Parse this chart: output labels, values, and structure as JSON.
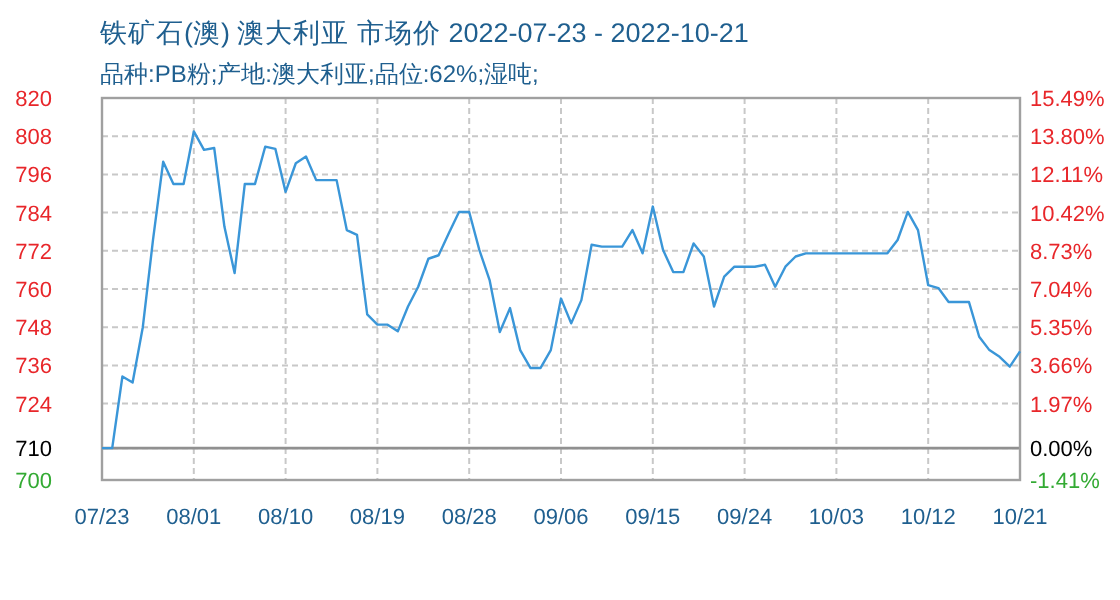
{
  "chart_data": {
    "type": "line",
    "title": "铁矿石(澳) 澳大利亚 市场价 2022-07-23 - 2022-10-21",
    "subtitle": "品种:PB粉;产地:澳大利亚;品位:62%;湿吨;",
    "x": [
      "2022-07-23",
      "2022-07-24",
      "2022-07-25",
      "2022-07-26",
      "2022-07-27",
      "2022-07-28",
      "2022-07-29",
      "2022-07-30",
      "2022-07-31",
      "2022-08-01",
      "2022-08-02",
      "2022-08-03",
      "2022-08-04",
      "2022-08-05",
      "2022-08-06",
      "2022-08-07",
      "2022-08-08",
      "2022-08-09",
      "2022-08-10",
      "2022-08-11",
      "2022-08-12",
      "2022-08-13",
      "2022-08-14",
      "2022-08-15",
      "2022-08-16",
      "2022-08-17",
      "2022-08-18",
      "2022-08-19",
      "2022-08-20",
      "2022-08-21",
      "2022-08-22",
      "2022-08-23",
      "2022-08-24",
      "2022-08-25",
      "2022-08-26",
      "2022-08-27",
      "2022-08-28",
      "2022-08-29",
      "2022-08-30",
      "2022-08-31",
      "2022-09-01",
      "2022-09-02",
      "2022-09-03",
      "2022-09-04",
      "2022-09-05",
      "2022-09-06",
      "2022-09-07",
      "2022-09-08",
      "2022-09-09",
      "2022-09-10",
      "2022-09-11",
      "2022-09-12",
      "2022-09-13",
      "2022-09-14",
      "2022-09-15",
      "2022-09-16",
      "2022-09-17",
      "2022-09-18",
      "2022-09-19",
      "2022-09-20",
      "2022-09-21",
      "2022-09-22",
      "2022-09-23",
      "2022-09-24",
      "2022-09-25",
      "2022-09-26",
      "2022-09-27",
      "2022-09-28",
      "2022-09-29",
      "2022-09-30",
      "2022-10-01",
      "2022-10-02",
      "2022-10-03",
      "2022-10-04",
      "2022-10-05",
      "2022-10-06",
      "2022-10-07",
      "2022-10-08",
      "2022-10-09",
      "2022-10-10",
      "2022-10-11",
      "2022-10-12",
      "2022-10-13",
      "2022-10-14",
      "2022-10-15",
      "2022-10-16",
      "2022-10-17",
      "2022-10-18",
      "2022-10-19",
      "2022-10-20",
      "2022-10-21"
    ],
    "values": [
      710,
      710,
      732.5,
      730.6,
      748,
      775.4,
      800,
      793,
      793,
      809.5,
      803.7,
      804.3,
      779.6,
      765,
      793,
      793,
      804.7,
      804,
      790.5,
      799.5,
      801.6,
      794.2,
      794.2,
      794.2,
      778.5,
      777,
      752,
      748.8,
      748.8,
      746.7,
      754.5,
      760.7,
      769.5,
      770.6,
      777.5,
      784.2,
      784.2,
      772.2,
      762.8,
      746.5,
      754,
      740.8,
      735.2,
      735.2,
      740.8,
      757,
      749.2,
      756.5,
      773.9,
      773.3,
      773.3,
      773.3,
      778.5,
      771.2,
      785.9,
      772.3,
      765.3,
      765.3,
      774.3,
      770.2,
      754.5,
      763.9,
      767,
      767,
      767,
      767.6,
      760.7,
      767,
      770.2,
      771.2,
      771.2,
      771.2,
      771.2,
      771.2,
      771.2,
      771.2,
      771.2,
      771.2,
      775.4,
      784.2,
      778.5,
      761.2,
      760.3,
      755.9,
      755.9,
      755.9,
      745,
      740.8,
      738.7,
      735.6,
      740.4
    ],
    "color": "#3a96d8",
    "xlim": [
      "2022-07-23",
      "2022-10-21"
    ],
    "xticks": [
      {
        "value": "2022-07-23",
        "label": "07/23"
      },
      {
        "value": "2022-08-01",
        "label": "08/01"
      },
      {
        "value": "2022-08-10",
        "label": "08/10"
      },
      {
        "value": "2022-08-19",
        "label": "08/19"
      },
      {
        "value": "2022-08-28",
        "label": "08/28"
      },
      {
        "value": "2022-09-06",
        "label": "09/06"
      },
      {
        "value": "2022-09-15",
        "label": "09/15"
      },
      {
        "value": "2022-09-24",
        "label": "09/24"
      },
      {
        "value": "2022-10-03",
        "label": "10/03"
      },
      {
        "value": "2022-10-12",
        "label": "10/12"
      },
      {
        "value": "2022-10-21",
        "label": "10/21"
      }
    ],
    "ylim": [
      700,
      820
    ],
    "yticks": [
      700,
      710,
      724,
      736,
      748,
      760,
      772,
      784,
      796,
      808,
      820
    ],
    "y2lim": [
      -1.41,
      15.49
    ],
    "y2ticks": [
      {
        "value": -1.41,
        "label": "-1.41%"
      },
      {
        "value": 0,
        "label": "0.00%"
      },
      {
        "value": 1.97,
        "label": "1.97%"
      },
      {
        "value": 3.66,
        "label": "3.66%"
      },
      {
        "value": 5.35,
        "label": "5.35%"
      },
      {
        "value": 7.04,
        "label": "7.04%"
      },
      {
        "value": 8.73,
        "label": "8.73%"
      },
      {
        "value": 10.42,
        "label": "10.42%"
      },
      {
        "value": 12.11,
        "label": "12.11%"
      },
      {
        "value": 13.8,
        "label": "13.80%"
      },
      {
        "value": 15.49,
        "label": "15.49%"
      }
    ],
    "grid": true,
    "ref_lines": [
      {
        "axis": "y",
        "value": 710,
        "color": "#909090",
        "line_style": "solid"
      }
    ]
  }
}
